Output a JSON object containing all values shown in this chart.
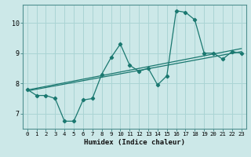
{
  "xlabel": "Humidex (Indice chaleur)",
  "background_color": "#cce8e8",
  "grid_color": "#aad4d4",
  "line_color": "#1a7870",
  "xlim": [
    -0.5,
    23.5
  ],
  "ylim": [
    6.5,
    10.6
  ],
  "yticks": [
    7,
    8,
    9,
    10
  ],
  "xticks": [
    0,
    1,
    2,
    3,
    4,
    5,
    6,
    7,
    8,
    9,
    10,
    11,
    12,
    13,
    14,
    15,
    16,
    17,
    18,
    19,
    20,
    21,
    22,
    23
  ],
  "series_zigzag": {
    "x": [
      0,
      1,
      2,
      3,
      4,
      5,
      6,
      7,
      8,
      9,
      10,
      11,
      12,
      13,
      14,
      15,
      16,
      17,
      18,
      19,
      20,
      21,
      22,
      23
    ],
    "y": [
      7.8,
      7.6,
      7.6,
      7.5,
      6.75,
      6.75,
      7.45,
      7.5,
      8.3,
      8.85,
      9.3,
      8.6,
      8.4,
      8.5,
      7.95,
      8.25,
      10.4,
      10.35,
      10.1,
      9.0,
      9.0,
      8.8,
      9.05,
      9.0
    ]
  },
  "series_trend1": {
    "x": [
      0,
      23
    ],
    "y": [
      7.75,
      9.05
    ]
  },
  "series_trend2": {
    "x": [
      0,
      23
    ],
    "y": [
      7.78,
      9.15
    ]
  }
}
